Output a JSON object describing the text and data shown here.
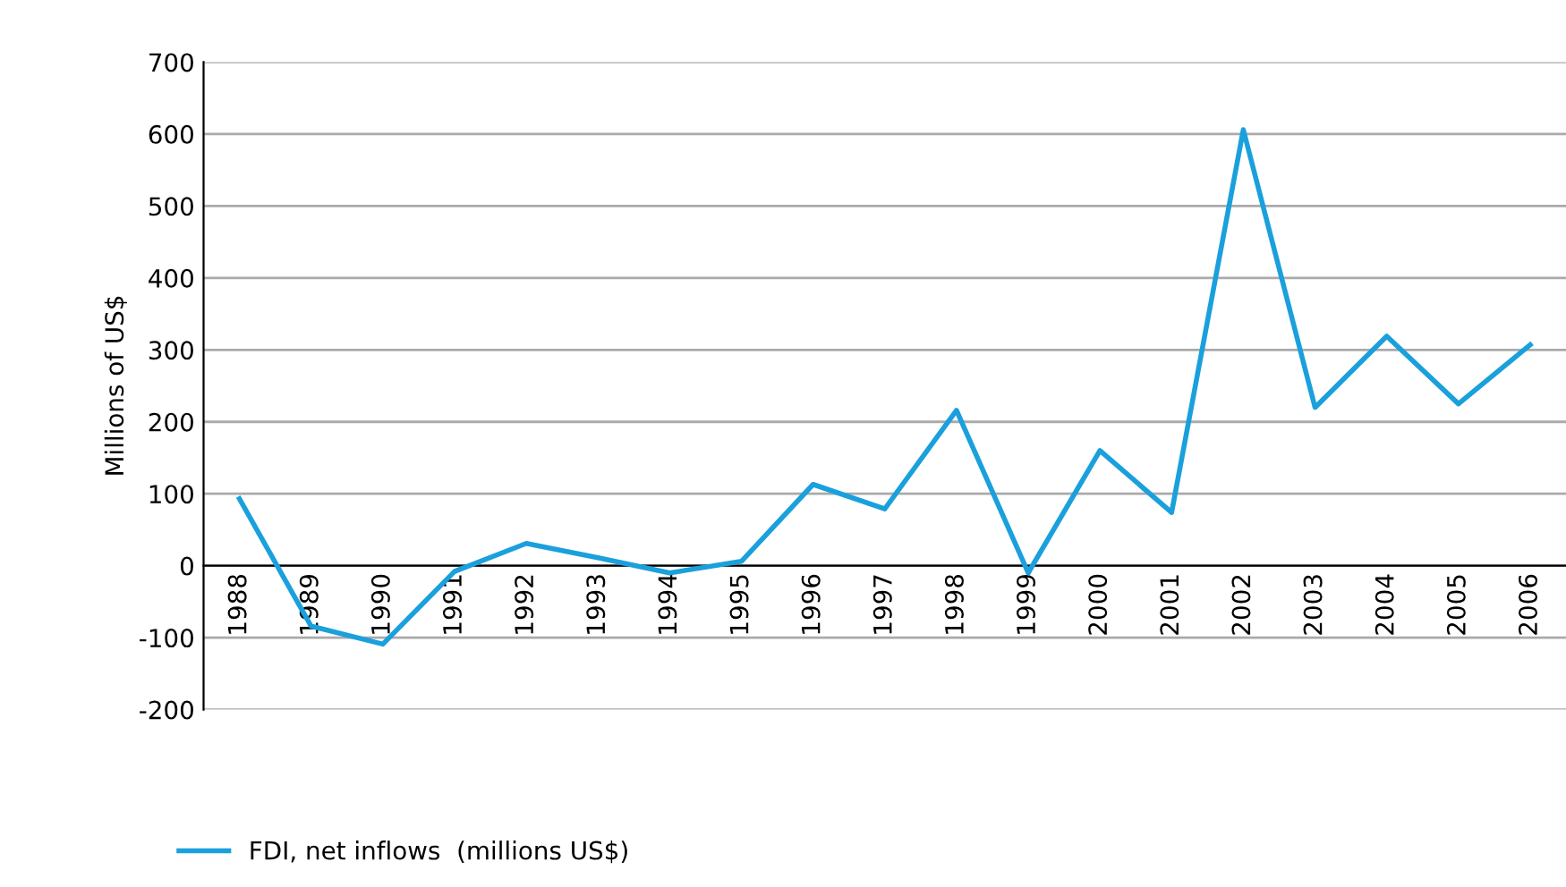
{
  "chart_data": {
    "type": "line",
    "ylabel": "Millions of US$",
    "categories": [
      "1988",
      "1989",
      "1990",
      "1991",
      "1992",
      "1993",
      "1994",
      "1995",
      "1996",
      "1997",
      "1998",
      "1999",
      "2000",
      "2001",
      "2002",
      "2003",
      "2004",
      "2005",
      "2006"
    ],
    "series": [
      {
        "name": "FDI, net inflows  (millions US$)",
        "color": "#1aa0dc",
        "values": [
          93,
          -84,
          -109,
          -8,
          31,
          11,
          -10,
          6,
          113,
          79,
          216,
          -10,
          160,
          74,
          606,
          220,
          319,
          225,
          307
        ]
      }
    ],
    "ylim": [
      -200,
      700
    ],
    "yticks": [
      -200,
      -100,
      0,
      100,
      200,
      300,
      400,
      500,
      600,
      700
    ],
    "grid": "y",
    "legend": "bottom left",
    "marker": "none",
    "line_style": "solid"
  }
}
